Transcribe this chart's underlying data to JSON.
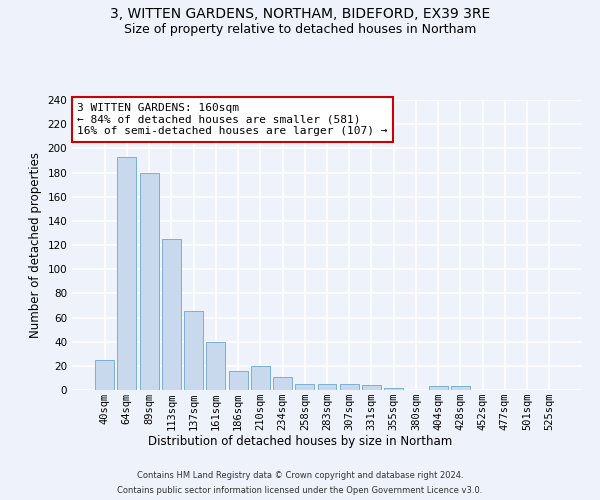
{
  "title_line1": "3, WITTEN GARDENS, NORTHAM, BIDEFORD, EX39 3RE",
  "title_line2": "Size of property relative to detached houses in Northam",
  "xlabel": "Distribution of detached houses by size in Northam",
  "ylabel": "Number of detached properties",
  "categories": [
    "40sqm",
    "64sqm",
    "89sqm",
    "113sqm",
    "137sqm",
    "161sqm",
    "186sqm",
    "210sqm",
    "234sqm",
    "258sqm",
    "283sqm",
    "307sqm",
    "331sqm",
    "355sqm",
    "380sqm",
    "404sqm",
    "428sqm",
    "452sqm",
    "477sqm",
    "501sqm",
    "525sqm"
  ],
  "values": [
    25,
    193,
    180,
    125,
    65,
    40,
    16,
    20,
    11,
    5,
    5,
    5,
    4,
    2,
    0,
    3,
    3,
    0,
    0,
    0,
    0
  ],
  "bar_color": "#c8d9ee",
  "bar_edge_color": "#7aafd4",
  "annotation_text": "3 WITTEN GARDENS: 160sqm\n← 84% of detached houses are smaller (581)\n16% of semi-detached houses are larger (107) →",
  "annotation_box_color": "#ffffff",
  "annotation_border_color": "#cc0000",
  "highlight_index": 5,
  "ylim": [
    0,
    240
  ],
  "yticks": [
    0,
    20,
    40,
    60,
    80,
    100,
    120,
    140,
    160,
    180,
    200,
    220,
    240
  ],
  "footer_line1": "Contains HM Land Registry data © Crown copyright and database right 2024.",
  "footer_line2": "Contains public sector information licensed under the Open Government Licence v3.0.",
  "background_color": "#eef2fb",
  "grid_color": "#ffffff",
  "title_fontsize": 10,
  "subtitle_fontsize": 9,
  "axis_label_fontsize": 8.5,
  "tick_fontsize": 7.5,
  "annotation_fontsize": 8,
  "footer_fontsize": 6
}
